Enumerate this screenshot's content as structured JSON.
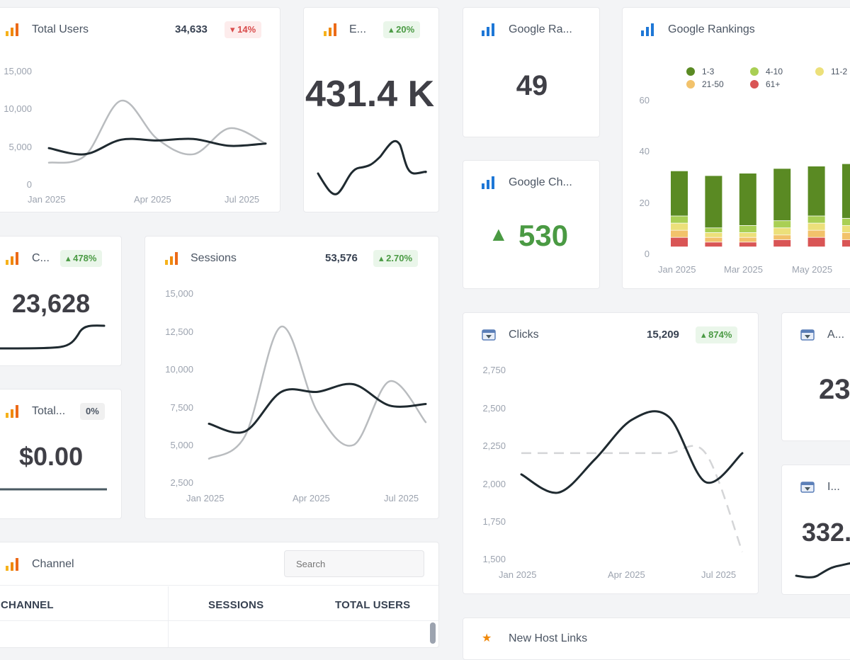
{
  "colors": {
    "analytics_bar_1": "#f6b21b",
    "analytics_bar_2": "#f0890c",
    "analytics_bar_3": "#ec6a18",
    "rankings_blue": "#1e77d6",
    "up_green": "#4a9a43",
    "down_red": "#d94c4c"
  },
  "total_users": {
    "title": "Total Users",
    "value": "34,633",
    "badge": "▾ 14%",
    "y_ticks": [
      "15,000",
      "10,000",
      "5,000",
      "0"
    ],
    "x_ticks": [
      "Jan 2025",
      "Apr 2025",
      "Jul 2025"
    ]
  },
  "engaged": {
    "title": "E...",
    "badge": "▴ 20%",
    "value": "431.4 K"
  },
  "google_rank": {
    "title": "Google Ra...",
    "value": "49"
  },
  "google_change": {
    "title": "Google Ch...",
    "value": "530",
    "arrow": "▲"
  },
  "rankings_chart": {
    "title": "Google Rankings",
    "legend": [
      {
        "label": "1-3",
        "color": "#5a8a23"
      },
      {
        "label": "4-10",
        "color": "#a9cf54"
      },
      {
        "label": "11-2",
        "color": "#ece07a"
      },
      {
        "label": "21-50",
        "color": "#f2c26b"
      },
      {
        "label": "61+",
        "color": "#d95555"
      }
    ],
    "y_ticks": [
      "60",
      "40",
      "20",
      "0"
    ],
    "x_ticks": [
      "Jan 2025",
      "Mar 2025",
      "May 2025"
    ]
  },
  "chart_data": [
    {
      "type": "line",
      "title": "Total Users",
      "x": [
        "Jan 2025",
        "Feb 2025",
        "Mar 2025",
        "Apr 2025",
        "May 2025",
        "Jun 2025",
        "Jul 2025"
      ],
      "series": [
        {
          "values": [
            4800,
            4000,
            5900,
            5800,
            6000,
            5100,
            5400
          ]
        },
        {
          "values": [
            2900,
            3800,
            11000,
            6000,
            4000,
            7400,
            5400
          ]
        }
      ],
      "ylim": [
        0,
        15000
      ]
    },
    {
      "type": "line",
      "title": "Sessions",
      "x": [
        "Jan 2025",
        "Feb 2025",
        "Mar 2025",
        "Apr 2025",
        "May 2025",
        "Jun 2025",
        "Jul 2025"
      ],
      "series": [
        {
          "values": [
            6400,
            5900,
            8500,
            8500,
            9000,
            7600,
            7700
          ]
        },
        {
          "values": [
            4100,
            5600,
            12800,
            7200,
            5000,
            9200,
            6500
          ]
        }
      ],
      "ylim": [
        2500,
        15000
      ]
    },
    {
      "type": "line",
      "title": "Clicks",
      "x": [
        "Jan 2025",
        "Feb 2025",
        "Mar 2025",
        "Apr 2025",
        "May 2025",
        "Jun 2025",
        "Jul 2025"
      ],
      "series": [
        {
          "values": [
            2060,
            1940,
            2160,
            2420,
            2440,
            2010,
            2200
          ]
        },
        {
          "values": [
            2200,
            2200,
            2200,
            2200,
            2200,
            2200,
            1550
          ]
        }
      ],
      "ylim": [
        1500,
        2750
      ]
    },
    {
      "type": "bar",
      "title": "Google Rankings",
      "categories": [
        "Jan 2025",
        "Feb 2025",
        "Mar 2025",
        "Apr 2025",
        "May 2025",
        "Jun 2025"
      ],
      "series": [
        {
          "name": "61+",
          "values": [
            4,
            2,
            2,
            3,
            4,
            3
          ]
        },
        {
          "name": "21-50",
          "values": [
            3,
            2,
            2,
            2,
            3,
            3
          ]
        },
        {
          "name": "11-2",
          "values": [
            3,
            2,
            2,
            3,
            3,
            3
          ]
        },
        {
          "name": "4-10",
          "values": [
            3,
            2,
            3,
            3,
            3,
            3
          ]
        },
        {
          "name": "1-3",
          "values": [
            19,
            22,
            22,
            22,
            21,
            23
          ]
        }
      ],
      "ylim": [
        0,
        65
      ]
    }
  ],
  "conversions": {
    "title": "C...",
    "badge": "▴ 478%",
    "value": "23,628"
  },
  "total_revenue": {
    "title": "Total...",
    "badge": "0%",
    "value": "$0.00"
  },
  "sessions": {
    "title": "Sessions",
    "value": "53,576",
    "badge": "▴ 2.70%",
    "y_ticks": [
      "15,000",
      "12,500",
      "10,000",
      "7,500",
      "5,000",
      "2,500"
    ],
    "x_ticks": [
      "Jan 2025",
      "Apr 2025",
      "Jul 2025"
    ]
  },
  "clicks": {
    "title": "Clicks",
    "value": "15,209",
    "badge": "▴ 874%",
    "y_ticks": [
      "2,750",
      "2,500",
      "2,250",
      "2,000",
      "1,750",
      "1,500"
    ],
    "x_ticks": [
      "Jan 2025",
      "Apr 2025",
      "Jul 2025"
    ]
  },
  "avg_card": {
    "title": "A...",
    "value": "23"
  },
  "impr_card": {
    "title": "I...",
    "value": "332."
  },
  "channel": {
    "title": "Channel",
    "search_placeholder": "Search",
    "columns": [
      "CHANNEL",
      "SESSIONS",
      "TOTAL USERS"
    ]
  },
  "bottom_card": {
    "title": "New Host Links"
  }
}
